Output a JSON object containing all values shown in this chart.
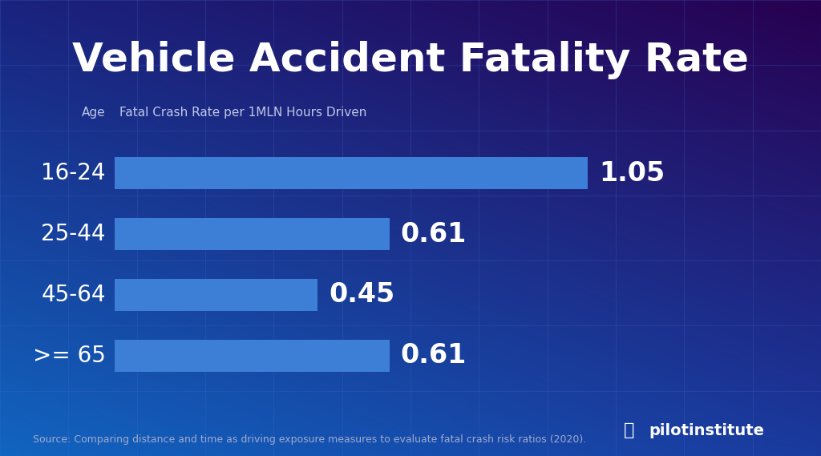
{
  "title": "Vehicle Accident Fatality Rate",
  "subtitle_age": "Age",
  "subtitle_rate": "Fatal Crash Rate per 1MLN Hours Driven",
  "categories": [
    "16-24",
    "25-44",
    "45-64",
    ">= 65"
  ],
  "values": [
    1.05,
    0.61,
    0.45,
    0.61
  ],
  "bar_color": "#3d7ed6",
  "text_color": "#ffffff",
  "source_text": "Source: Comparing distance and time as driving exposure measures to evaluate fatal crash risk ratios (2020).",
  "logo_text": "pilotinstitute",
  "title_fontsize": 36,
  "label_fontsize": 20,
  "value_fontsize": 24,
  "source_fontsize": 9,
  "bar_height": 0.52,
  "xlim": [
    0,
    1.35
  ],
  "bg_tl": "#1a237e",
  "bg_tr": "#280050",
  "bg_bl": "#1155bb",
  "bg_br": "#1a3a9e",
  "grid_color": "#4466cc",
  "grid_alpha": 0.25
}
